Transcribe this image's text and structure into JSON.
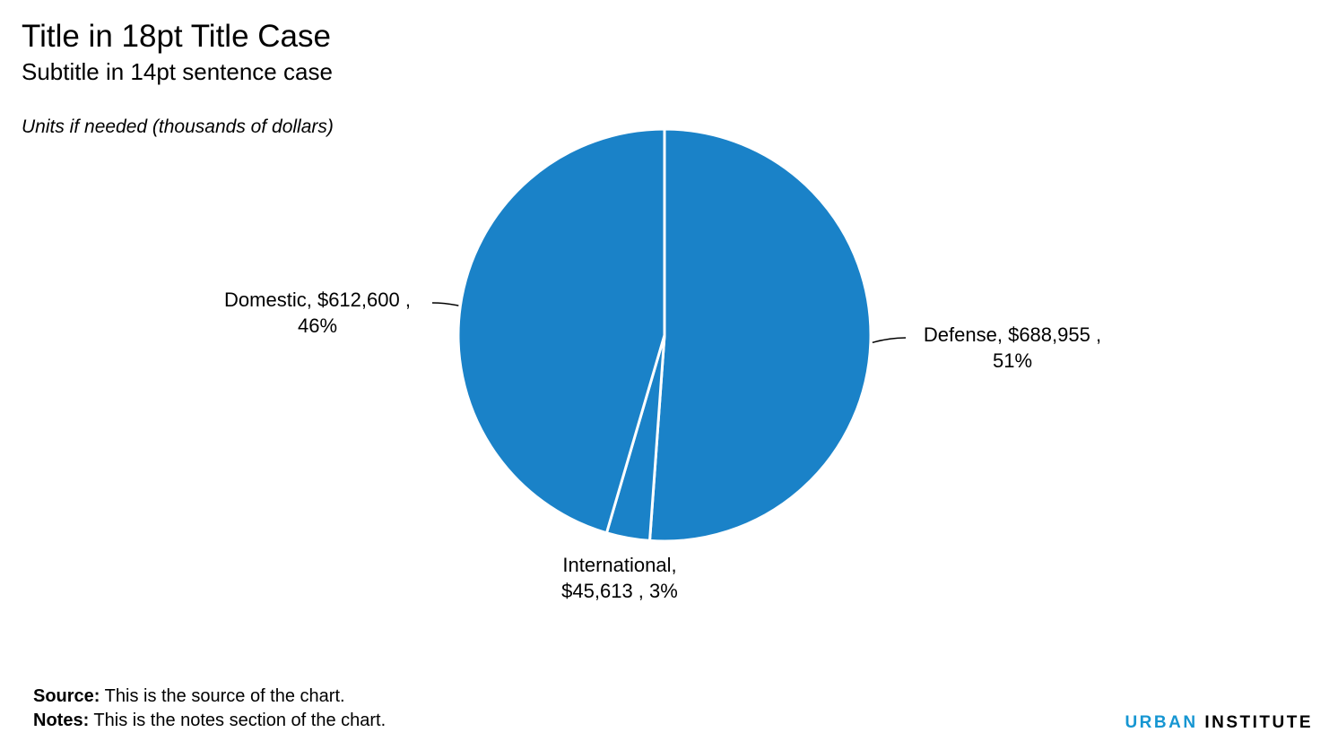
{
  "header": {
    "title": "Title in 18pt Title Case",
    "subtitle": "Subtitle in 14pt sentence case",
    "units": "Units if needed (thousands of dollars)"
  },
  "chart_data": {
    "type": "pie",
    "title": "Title in 18pt Title Case",
    "subtitle": "Subtitle in 14pt sentence case",
    "units": "Units if needed (thousands of dollars)",
    "slice_color": "#1a82c8",
    "separator_color": "#ffffff",
    "categories": [
      "Defense",
      "International",
      "Domestic"
    ],
    "values": [
      688955,
      45613,
      612600
    ],
    "percents": [
      51,
      3,
      46
    ],
    "labels": [
      {
        "lines": [
          "Defense,  $688,955 ,",
          "51%"
        ]
      },
      {
        "lines": [
          "International,",
          "$45,613 , 3%"
        ]
      },
      {
        "lines": [
          "Domestic,  $612,600 ,",
          "46%"
        ]
      }
    ]
  },
  "footer": {
    "source_label": "Source:",
    "source_text": " This is the source of the chart.",
    "notes_label": "Notes:",
    "notes_text": " This is the notes section of the chart."
  },
  "brand": {
    "part1": "URBAN",
    "part2": " INSTITUTE",
    "color_part1": "#1696d2",
    "color_part2": "#000000"
  }
}
